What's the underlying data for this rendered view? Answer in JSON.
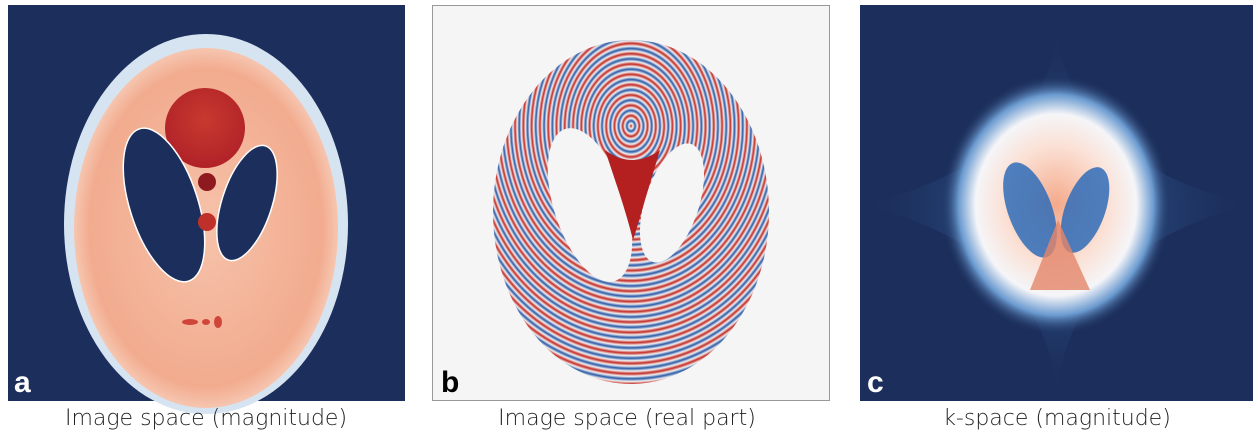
{
  "panels": [
    {
      "letter": "a",
      "caption": "Image space (magnitude)"
    },
    {
      "letter": "b",
      "caption": "Image space (real part)"
    },
    {
      "letter": "c",
      "caption": "k-space (magnitude)"
    }
  ]
}
